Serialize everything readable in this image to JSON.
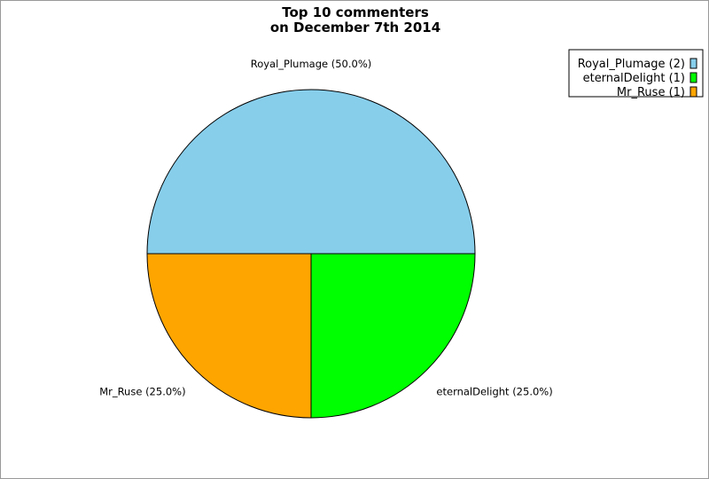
{
  "chart_data": {
    "type": "pie",
    "title": [
      "Top 10 commenters",
      "on December 7th 2014"
    ],
    "slices": [
      {
        "label": "Royal_Plumage (50.0%)",
        "legend": "Royal_Plumage (2)",
        "value": 2,
        "color": "#87ceeb"
      },
      {
        "label": "eternalDelight (25.0%)",
        "legend": "eternalDelight (1)",
        "value": 1,
        "color": "#00ff00"
      },
      {
        "label": "Mr_Ruse (25.0%)",
        "legend": "Mr_Ruse (1)",
        "value": 1,
        "color": "#ffa500"
      }
    ],
    "legend_position": "top-right"
  }
}
